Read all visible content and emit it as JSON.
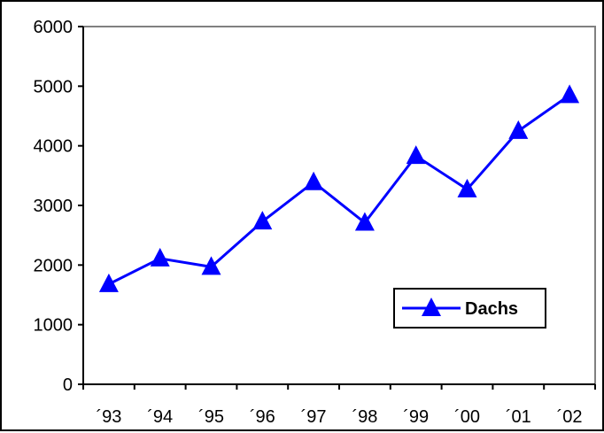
{
  "chart_data": {
    "type": "line",
    "categories": [
      "´93",
      "´94",
      "´95",
      "´96",
      "´97",
      "´98",
      "´99",
      "´00",
      "´01",
      "´02"
    ],
    "series": [
      {
        "name": "Dachs",
        "values": [
          1680,
          2110,
          1970,
          2730,
          3390,
          2710,
          3830,
          3270,
          4250,
          4850
        ],
        "color": "#0000ff",
        "marker": "triangle"
      }
    ],
    "ylim": [
      0,
      6000
    ],
    "yticks": [
      "0",
      "1000",
      "2000",
      "3000",
      "4000",
      "5000",
      "6000"
    ],
    "grid": false,
    "legend_position": "lower-right"
  }
}
